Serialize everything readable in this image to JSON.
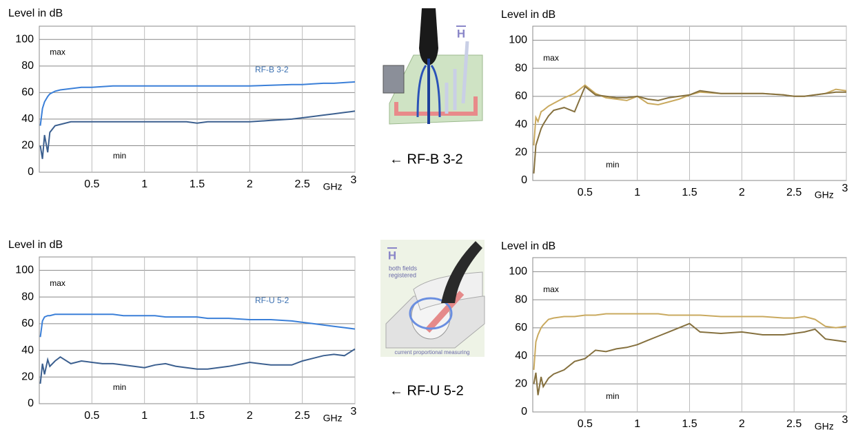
{
  "chart_data": [
    {
      "type": "line",
      "ylabel": "Level in dB",
      "xlabel": "GHz",
      "x": [
        0.01,
        0.03,
        0.05,
        0.08,
        0.1,
        0.15,
        0.2,
        0.3,
        0.4,
        0.5,
        0.6,
        0.7,
        0.8,
        0.9,
        1,
        1.1,
        1.2,
        1.3,
        1.4,
        1.5,
        1.6,
        1.8,
        2,
        2.2,
        2.4,
        2.5,
        2.6,
        2.7,
        2.8,
        2.9,
        3
      ],
      "xlim": [
        0,
        3
      ],
      "ylim": [
        0,
        110
      ],
      "xticks": [
        0.5,
        1,
        1.5,
        2,
        2.5,
        3
      ],
      "yticks": [
        0,
        20,
        40,
        60,
        80,
        100
      ],
      "grid": true,
      "series": [
        {
          "color": "#3a7fd8",
          "values": [
            35,
            48,
            53,
            57,
            59,
            61,
            62,
            63,
            64,
            64,
            64.5,
            65,
            65,
            65,
            65,
            65,
            65,
            65,
            65,
            65,
            65,
            65,
            65,
            65.5,
            66,
            66,
            66.5,
            67,
            67,
            67.5,
            68
          ]
        },
        {
          "color": "#3b5f8f",
          "values": [
            20,
            10,
            28,
            15,
            30,
            35,
            36,
            38,
            38,
            38,
            38,
            38,
            38,
            38,
            38,
            38,
            38,
            38,
            38,
            37,
            38,
            38,
            38,
            39,
            40,
            41,
            42,
            43,
            44,
            45,
            46
          ]
        }
      ],
      "annotations": [
        "max",
        "min",
        "RF-B 3-2"
      ]
    },
    {
      "type": "line",
      "ylabel": "Level in dB",
      "xlabel": "GHz",
      "x": [
        0.01,
        0.03,
        0.05,
        0.08,
        0.1,
        0.15,
        0.2,
        0.3,
        0.4,
        0.5,
        0.6,
        0.7,
        0.8,
        0.9,
        1,
        1.1,
        1.2,
        1.3,
        1.4,
        1.5,
        1.6,
        1.8,
        2,
        2.2,
        2.4,
        2.5,
        2.6,
        2.7,
        2.8,
        2.9,
        3
      ],
      "xlim": [
        0,
        3
      ],
      "ylim": [
        0,
        110
      ],
      "xticks": [
        0.5,
        1,
        1.5,
        2,
        2.5,
        3
      ],
      "yticks": [
        0,
        20,
        40,
        60,
        80,
        100
      ],
      "grid": true,
      "series": [
        {
          "color": "#c9a95e",
          "values": [
            25,
            45,
            42,
            49,
            50,
            53,
            55,
            59,
            62,
            68,
            62,
            59,
            58,
            57,
            60,
            55,
            54,
            56,
            58,
            61,
            63,
            62,
            62,
            62,
            61,
            60,
            60,
            61,
            62,
            65,
            64
          ]
        },
        {
          "color": "#85703e",
          "values": [
            5,
            25,
            30,
            37,
            40,
            46,
            50,
            52,
            49,
            67,
            61,
            60,
            59,
            59,
            60,
            58,
            57,
            59,
            60,
            61,
            64,
            62,
            62,
            62,
            61,
            60,
            60,
            61,
            62,
            63,
            63
          ]
        }
      ],
      "annotations": [
        "max",
        "min"
      ]
    },
    {
      "type": "line",
      "ylabel": "Level in dB",
      "xlabel": "GHz",
      "x": [
        0.01,
        0.03,
        0.05,
        0.08,
        0.1,
        0.15,
        0.2,
        0.3,
        0.4,
        0.5,
        0.6,
        0.7,
        0.8,
        0.9,
        1,
        1.1,
        1.2,
        1.3,
        1.4,
        1.5,
        1.6,
        1.8,
        2,
        2.2,
        2.4,
        2.5,
        2.6,
        2.7,
        2.8,
        2.9,
        3
      ],
      "xlim": [
        0,
        3
      ],
      "ylim": [
        0,
        110
      ],
      "xticks": [
        0.5,
        1,
        1.5,
        2,
        2.5,
        3
      ],
      "yticks": [
        0,
        20,
        40,
        60,
        80,
        100
      ],
      "grid": true,
      "series": [
        {
          "color": "#3a7fd8",
          "values": [
            50,
            62,
            65,
            66,
            66,
            67,
            67,
            67,
            67,
            67,
            67,
            67,
            66,
            66,
            66,
            66,
            65,
            65,
            65,
            65,
            64,
            64,
            63,
            63,
            62,
            61,
            60,
            59,
            58,
            57,
            56
          ]
        },
        {
          "color": "#3b5f8f",
          "values": [
            15,
            30,
            22,
            33,
            28,
            32,
            35,
            30,
            32,
            31,
            30,
            30,
            29,
            28,
            27,
            29,
            30,
            28,
            27,
            26,
            26,
            28,
            31,
            29,
            29,
            32,
            34,
            36,
            37,
            36,
            41
          ]
        }
      ],
      "annotations": [
        "max",
        "min",
        "RF-U 5-2"
      ]
    },
    {
      "type": "line",
      "ylabel": "Level in dB",
      "xlabel": "GHz",
      "x": [
        0.01,
        0.03,
        0.05,
        0.08,
        0.1,
        0.15,
        0.2,
        0.3,
        0.4,
        0.5,
        0.6,
        0.7,
        0.8,
        0.9,
        1,
        1.1,
        1.2,
        1.3,
        1.4,
        1.5,
        1.6,
        1.8,
        2,
        2.2,
        2.4,
        2.5,
        2.6,
        2.7,
        2.8,
        2.9,
        3
      ],
      "xlim": [
        0,
        3
      ],
      "ylim": [
        0,
        110
      ],
      "xticks": [
        0.5,
        1,
        1.5,
        2,
        2.5,
        3
      ],
      "yticks": [
        0,
        20,
        40,
        60,
        80,
        100
      ],
      "grid": true,
      "series": [
        {
          "color": "#c9a95e",
          "values": [
            30,
            50,
            55,
            60,
            62,
            66,
            67,
            68,
            68,
            69,
            69,
            70,
            70,
            70,
            70,
            70,
            70,
            69,
            69,
            69,
            69,
            68,
            68,
            68,
            67,
            67,
            68,
            66,
            61,
            60,
            61
          ]
        },
        {
          "color": "#85703e",
          "values": [
            20,
            28,
            12,
            25,
            18,
            24,
            27,
            30,
            36,
            38,
            44,
            43,
            45,
            46,
            48,
            51,
            54,
            57,
            60,
            63,
            57,
            56,
            57,
            55,
            55,
            56,
            57,
            59,
            52,
            51,
            50
          ]
        }
      ],
      "annotations": [
        "max",
        "min"
      ]
    }
  ],
  "captions": [
    "← RF-B 3-2",
    "← RF-U 5-2"
  ],
  "illustrations": [
    {
      "label": "H"
    },
    {
      "label": "H",
      "notes": [
        "both fields",
        "registered",
        "current proportional measuring"
      ]
    }
  ]
}
